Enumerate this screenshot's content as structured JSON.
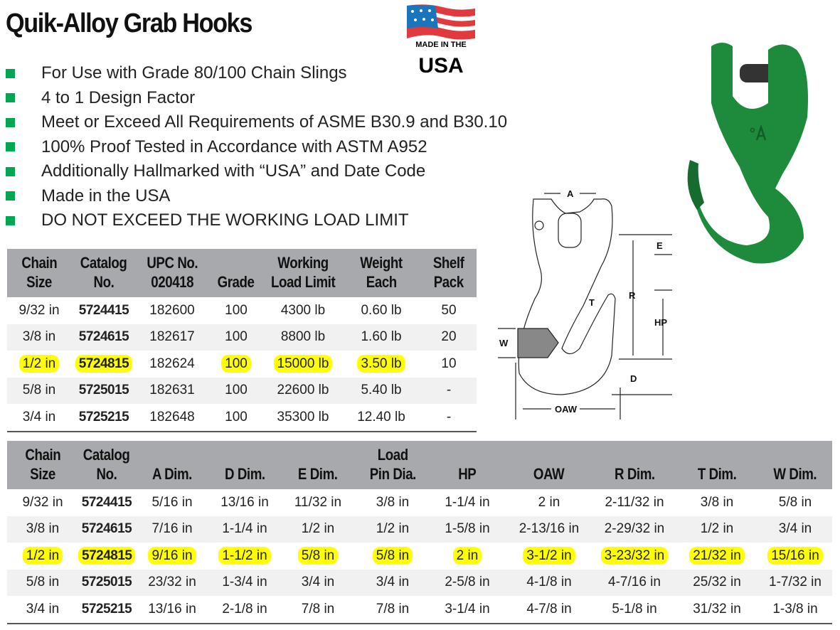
{
  "title": "Quik-Alloy Grab Hooks",
  "logo": {
    "text_top": "MADE IN THE",
    "text_bottom": "USA"
  },
  "colors": {
    "bullet": "#00a651",
    "header_bg": "#a7a9ac",
    "highlight": "#ffff00",
    "hook_green": "#1e8a3c"
  },
  "bullets": [
    "For Use with Grade 80/100 Chain Slings",
    "4 to 1 Design Factor",
    "Meet or Exceed All Requirements of ASME B30.9 and B30.10",
    "100% Proof Tested in Accordance with ASTM A952",
    "Additionally Hallmarked with “USA” and Date Code",
    "Made in the USA",
    "DO NOT EXCEED THE WORKING LOAD LIMIT"
  ],
  "diagram": {
    "labels": {
      "a": "A",
      "e": "E",
      "r": "R",
      "t": "T",
      "hp": "HP",
      "w": "W",
      "d": "D",
      "oaw": "OAW"
    }
  },
  "table1": {
    "headers": [
      [
        "Chain",
        "Size"
      ],
      [
        "Catalog",
        "No."
      ],
      [
        "UPC No.",
        "020418"
      ],
      [
        "",
        "Grade"
      ],
      [
        "Working",
        "Load Limit"
      ],
      [
        "Weight",
        "Each"
      ],
      [
        "Shelf",
        "Pack"
      ]
    ],
    "highlight_row": 2,
    "rows": [
      [
        "9/32 in",
        "5724415",
        "182600",
        "100",
        "4300 lb",
        "0.60 lb",
        "50"
      ],
      [
        "3/8 in",
        "5724615",
        "182617",
        "100",
        "8800 lb",
        "1.60 lb",
        "20"
      ],
      [
        "1/2 in",
        "5724815",
        "182624",
        "100",
        "15000 lb",
        "3.50 lb",
        "10"
      ],
      [
        "5/8 in",
        "5725015",
        "182631",
        "100",
        "22600 lb",
        "5.40 lb",
        "-"
      ],
      [
        "3/4 in",
        "5725215",
        "182648",
        "100",
        "35300 lb",
        "12.40 lb",
        "-"
      ]
    ]
  },
  "table2": {
    "headers": [
      [
        "Chain",
        "Size"
      ],
      [
        "Catalog",
        "No."
      ],
      [
        "",
        "A Dim."
      ],
      [
        "",
        "D Dim."
      ],
      [
        "",
        "E Dim."
      ],
      [
        "Load",
        "Pin Dia."
      ],
      [
        "",
        "HP"
      ],
      [
        "",
        "OAW"
      ],
      [
        "",
        "R Dim."
      ],
      [
        "",
        "T Dim."
      ],
      [
        "",
        "W Dim."
      ]
    ],
    "highlight_row": 2,
    "rows": [
      [
        "9/32 in",
        "5724415",
        "5/16 in",
        "13/16 in",
        "11/32 in",
        "3/8 in",
        "1-1/4 in",
        "2 in",
        "2-11/32 in",
        "3/8 in",
        "5/8 in"
      ],
      [
        "3/8 in",
        "5724615",
        "7/16 in",
        "1-1/4 in",
        "1/2 in",
        "1/2 in",
        "1-5/8 in",
        "2-13/16 in",
        "2-29/32 in",
        "1/2 in",
        "3/4 in"
      ],
      [
        "1/2 in",
        "5724815",
        "9/16 in",
        "1-1/2 in",
        "5/8 in",
        "5/8 in",
        "2 in",
        "3-1/2 in",
        "3-23/32 in",
        "21/32 in",
        "15/16 in"
      ],
      [
        "5/8 in",
        "5725015",
        "23/32 in",
        "1-3/4 in",
        "3/4 in",
        "3/4 in",
        "2-5/8 in",
        "4-1/8 in",
        "4-7/16 in",
        "25/32 in",
        "1-7/32 in"
      ],
      [
        "3/4 in",
        "5725215",
        "13/16 in",
        "2-1/8 in",
        "7/8 in",
        "7/8 in",
        "3-1/4 in",
        "4-7/8 in",
        "5-1/8 in",
        "31/32 in",
        "1-3/8 in"
      ]
    ]
  }
}
